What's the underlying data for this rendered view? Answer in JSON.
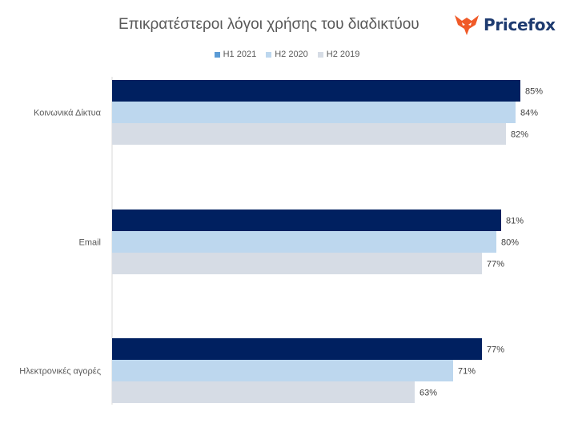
{
  "header": {
    "title": "Επικρατέστεροι λόγοι χρήσης του διαδικτύου",
    "brand_name": "Pricefox"
  },
  "colors": {
    "series": [
      "#002060",
      "#bdd7ee",
      "#d6dce5"
    ],
    "legend_swatch_first": "#5b9bd5",
    "brand": "#1e3b70",
    "logo": "#f05a28"
  },
  "chart_data": {
    "type": "bar",
    "orientation": "horizontal",
    "title": "Επικρατέστεροι λόγοι χρήσης του διαδικτύου",
    "categories": [
      "Κοινωνικά Δίκτυα",
      "Email",
      "Ηλεκτρονικές αγορές"
    ],
    "series": [
      {
        "name": "H1 2021",
        "values": [
          85,
          81,
          77
        ]
      },
      {
        "name": "H2 2020",
        "values": [
          84,
          80,
          71
        ]
      },
      {
        "name": "H2 2019",
        "values": [
          82,
          77,
          63
        ]
      }
    ],
    "value_suffix": "%",
    "xlim": [
      0,
      100
    ],
    "grid": false,
    "legend_position": "top",
    "xlabel": "",
    "ylabel": ""
  }
}
